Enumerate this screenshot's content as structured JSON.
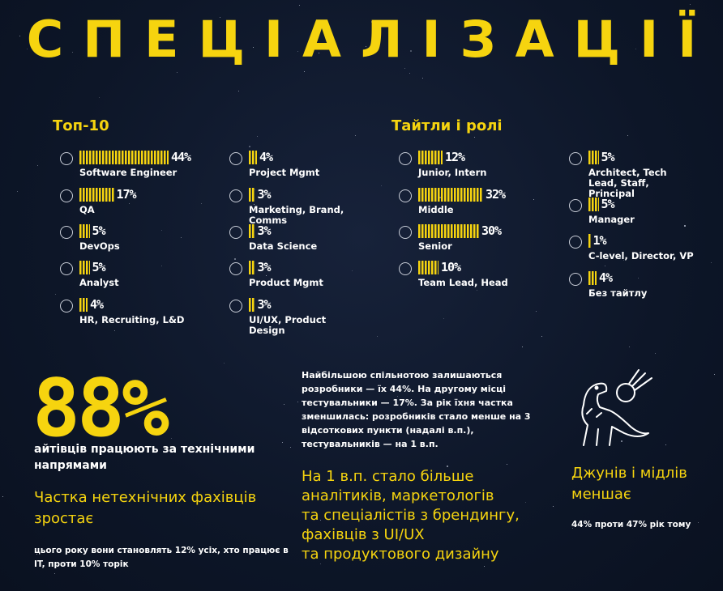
{
  "title": "СПЕЦІАЛІЗАЦІЇ",
  "top10": {
    "heading": "Топ-10",
    "items": [
      {
        "name": "Software Engineer",
        "value": 44,
        "value_label": "44%"
      },
      {
        "name": "QA",
        "value": 17,
        "value_label": "17%"
      },
      {
        "name": "DevOps",
        "value": 5,
        "value_label": "5%"
      },
      {
        "name": "Analyst",
        "value": 5,
        "value_label": "5%"
      },
      {
        "name": "HR, Recruiting, L&D",
        "value": 4,
        "value_label": "4%"
      },
      {
        "name": "Project Mgmt",
        "value": 4,
        "value_label": "4%"
      },
      {
        "name": "Marketing, Brand, Comms",
        "value": 3,
        "value_label": "3%"
      },
      {
        "name": "Data Science",
        "value": 3,
        "value_label": "3%"
      },
      {
        "name": "Product Mgmt",
        "value": 3,
        "value_label": "3%"
      },
      {
        "name": "UI/UX, Product Design",
        "value": 3,
        "value_label": "3%"
      }
    ]
  },
  "titles": {
    "heading": "Тайтли і ролі",
    "items": [
      {
        "name": "Junior, Intern",
        "value": 12,
        "value_label": "12%"
      },
      {
        "name": "Middle",
        "value": 32,
        "value_label": "32%"
      },
      {
        "name": "Senior",
        "value": 30,
        "value_label": "30%"
      },
      {
        "name": "Team Lead, Head",
        "value": 10,
        "value_label": "10%"
      },
      {
        "name": "Architect, Tech Lead, Staff, Principal",
        "value": 5,
        "value_label": "5%"
      },
      {
        "name": "Manager",
        "value": 5,
        "value_label": "5%"
      },
      {
        "name": "C-level, Director, VP",
        "value": 1,
        "value_label": "1%"
      },
      {
        "name": "Без тайтлу",
        "value": 4,
        "value_label": "4%"
      }
    ]
  },
  "summary": {
    "big_stat": "88%",
    "big_stat_caption": "айтівців працюють за технічними напрямами",
    "nontech_heading": "Частка нетехнічних фахівців зростає",
    "nontech_text": "цього року вони становлять 12% усіх, хто працює в IT, проти 10% торік",
    "dev_text": "Найбільшою спільнотою залишаються розробники — їх 44%. На другому місці тестувальники — 17%. За рік їхня частка зменшилась: розробників стало менше на 3 відсоткових пункти (надалі в.п.), тестувальників — на 1 в.п.",
    "growth_lines": [
      "На 1 в.п. стало більше",
      "аналітиків, маркетологів",
      "та спеціалістів з брендингу,",
      "фахівців з UI/UX",
      "та продуктового дизайну"
    ],
    "juniors_heading": "Джунів і мідлів меншає",
    "juniors_text": "44% проти 47% рік тому"
  }
}
